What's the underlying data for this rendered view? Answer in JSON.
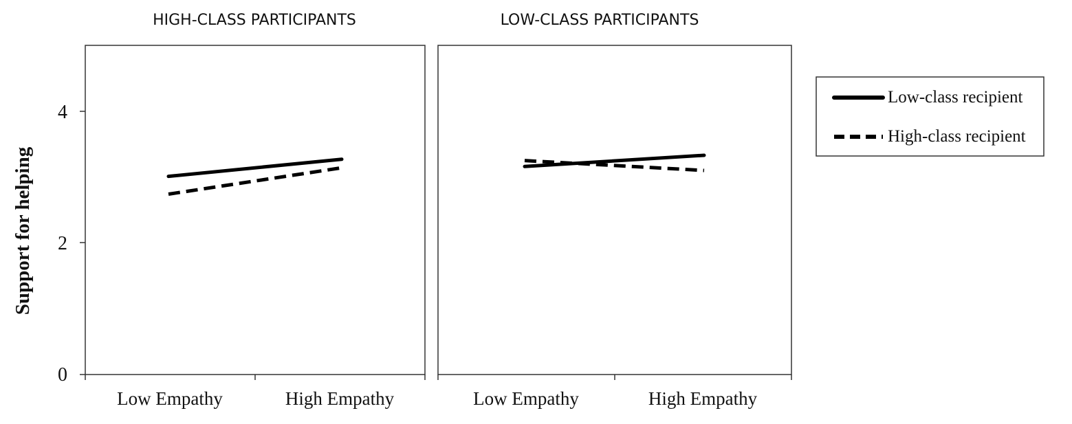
{
  "chart_data": {
    "type": "line",
    "ylabel": "Support for helping",
    "ylim": [
      0,
      5
    ],
    "yticks": [
      "0",
      "2",
      "4"
    ],
    "categories": [
      "Low Empathy",
      "High Empathy"
    ],
    "grid": false,
    "legend_position": "right",
    "legend": [
      {
        "label": "Low-class recipient",
        "style": "solid"
      },
      {
        "label": "High-class recipient",
        "style": "dashed"
      }
    ],
    "panels": [
      {
        "title": "HIGH-CLASS PARTICIPANTS",
        "series": [
          {
            "name": "Low-class recipient",
            "values": [
              3.01,
              3.27
            ]
          },
          {
            "name": "High-class recipient",
            "values": [
              2.74,
              3.14
            ]
          }
        ]
      },
      {
        "title": "LOW-CLASS PARTICIPANTS",
        "series": [
          {
            "name": "Low-class recipient",
            "values": [
              3.16,
              3.33
            ]
          },
          {
            "name": "High-class recipient",
            "values": [
              3.25,
              3.1
            ]
          }
        ]
      }
    ],
    "colors": {
      "line": "#000000",
      "axis": "#333333"
    }
  }
}
